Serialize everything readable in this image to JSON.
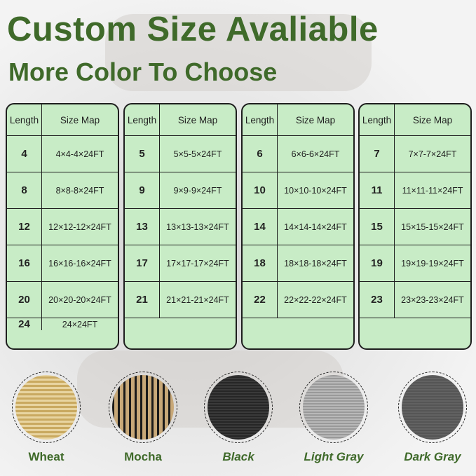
{
  "title": "Custom Size Avaliable",
  "subtitle": "More Color To Choose",
  "table_headers": {
    "length": "Length",
    "size_map": "Size Map"
  },
  "tables": [
    [
      {
        "l": "4",
        "s": "4×4-4×24FT"
      },
      {
        "l": "8",
        "s": "8×8-8×24FT"
      },
      {
        "l": "12",
        "s": "12×12-12×24FT"
      },
      {
        "l": "16",
        "s": "16×16-16×24FT"
      },
      {
        "l": "20",
        "s": "20×20-20×24FT"
      },
      {
        "l": "24",
        "s": "24×24FT"
      }
    ],
    [
      {
        "l": "5",
        "s": "5×5-5×24FT"
      },
      {
        "l": "9",
        "s": "9×9-9×24FT"
      },
      {
        "l": "13",
        "s": "13×13-13×24FT"
      },
      {
        "l": "17",
        "s": "17×17-17×24FT"
      },
      {
        "l": "21",
        "s": "21×21-21×24FT"
      },
      {
        "l": "",
        "s": ""
      }
    ],
    [
      {
        "l": "6",
        "s": "6×6-6×24FT"
      },
      {
        "l": "10",
        "s": "10×10-10×24FT"
      },
      {
        "l": "14",
        "s": "14×14-14×24FT"
      },
      {
        "l": "18",
        "s": "18×18-18×24FT"
      },
      {
        "l": "22",
        "s": "22×22-22×24FT"
      },
      {
        "l": "",
        "s": ""
      }
    ],
    [
      {
        "l": "7",
        "s": "7×7-7×24FT"
      },
      {
        "l": "11",
        "s": "11×11-11×24FT"
      },
      {
        "l": "15",
        "s": "15×15-15×24FT"
      },
      {
        "l": "19",
        "s": "19×19-19×24FT"
      },
      {
        "l": "23",
        "s": "23×23-23×24FT"
      },
      {
        "l": "",
        "s": ""
      }
    ]
  ],
  "colors": [
    {
      "name": "Wheat",
      "swatch": "#dcc080"
    },
    {
      "name": "Mocha",
      "swatch": "#8a7350"
    },
    {
      "name": "Black",
      "swatch": "#2e2e2e"
    },
    {
      "name": "Light Gray",
      "swatch": "#a8a8a8"
    },
    {
      "name": "Dark Gray",
      "swatch": "#5a5a5a"
    }
  ]
}
